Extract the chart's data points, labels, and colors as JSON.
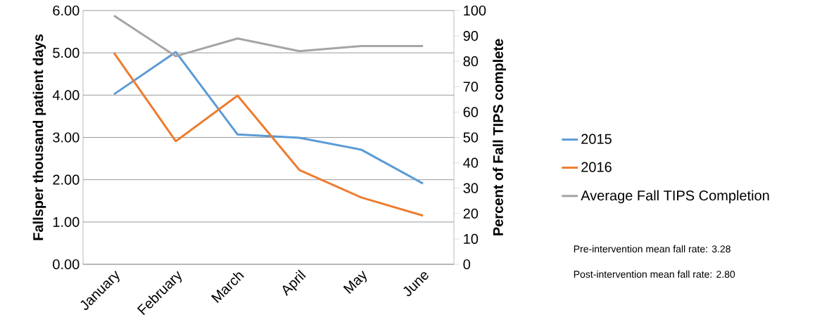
{
  "chart_data": {
    "type": "line",
    "ylabel": "Fallsper thousand patient days",
    "y2label": "Percent of Fall TIPS complete",
    "categories": [
      "January",
      "February",
      "March",
      "April",
      "May",
      "June"
    ],
    "series": [
      {
        "name": "2015",
        "color": "#5b9bd5",
        "values": [
          4.02,
          5.02,
          3.07,
          2.99,
          2.71,
          1.91
        ]
      },
      {
        "name": "2016",
        "color": "#ed7d31",
        "values": [
          5.0,
          2.91,
          3.99,
          2.23,
          1.58,
          1.15
        ]
      },
      {
        "name": "Average Fall TIPS Completion",
        "color": "#a5a5a5",
        "axis": "y2",
        "values": [
          98,
          82,
          89,
          84,
          86,
          86
        ]
      }
    ],
    "ylim": [
      0,
      6
    ],
    "yticks": [
      {
        "value": 0,
        "label": "0.00"
      },
      {
        "value": 1,
        "label": "1.00"
      },
      {
        "value": 2,
        "label": "2.00"
      },
      {
        "value": 3,
        "label": "3.00"
      },
      {
        "value": 4,
        "label": "4.00"
      },
      {
        "value": 5,
        "label": "5.00"
      },
      {
        "value": 6,
        "label": "6.00"
      }
    ],
    "y2lim": [
      0,
      100
    ],
    "y2ticks": [
      0,
      10,
      20,
      30,
      40,
      50,
      60,
      70,
      80,
      90,
      100
    ],
    "grid": "y",
    "legend": "right",
    "marker": "none",
    "line_style": "solid",
    "annotations": [
      "Pre-intervention  mean fall rate: 3.28",
      "Post-intervention  mean fall rate: 2.80"
    ]
  }
}
